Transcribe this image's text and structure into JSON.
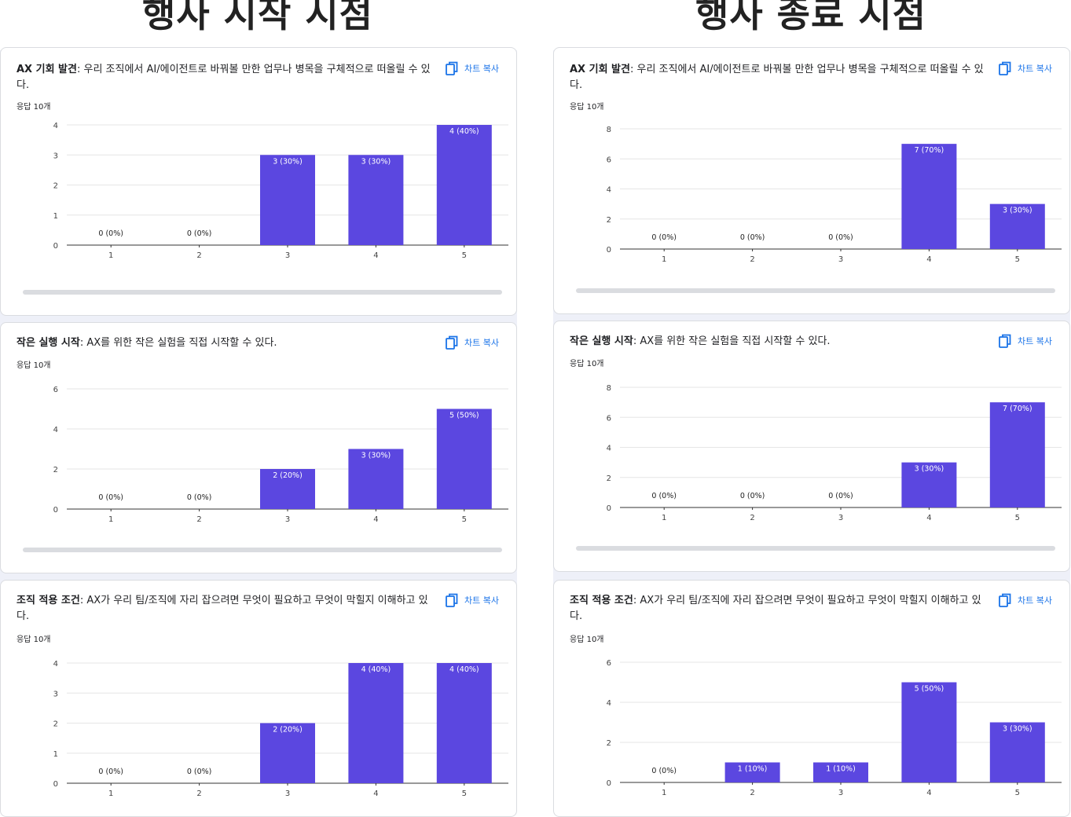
{
  "columns": [
    {
      "title": "행사 시작 시점"
    },
    {
      "title": "행사 종료 시점"
    }
  ],
  "copy_label": "차트 복사",
  "icons": {
    "copy": "copy-icon"
  },
  "colors": {
    "bar": "#5b47e0",
    "accent": "#1a73e8"
  },
  "cards": [
    {
      "strong": "AX 기회 발견",
      "text": ": 우리 조직에서 AI/에이전트로 바꿔볼 만한 업무나 병목을 구체적으로 떠올릴 수 있다.",
      "count": "응답 10개"
    },
    {
      "strong": "작은 실행 시작",
      "text": ": AX를 위한 작은 실험을 직접 시작할 수 있다.",
      "count": "응답 10개"
    },
    {
      "strong": "조직 적용 조건",
      "text": ": AX가 우리 팀/조직에 자리 잡으려면 무엇이 필요하고 무엇이 막힐지 이해하고 있다.",
      "count": "응답 10개"
    },
    {
      "strong": "AX 기회 발견",
      "text": ": 우리 조직에서 AI/에이전트로 바꿔볼 만한 업무나 병목을 구체적으로 떠올릴 수 있다.",
      "count": "응답 10개"
    },
    {
      "strong": "작은 실행 시작",
      "text": ": AX를 위한 작은 실험을 직접 시작할 수 있다.",
      "count": "응답 10개"
    },
    {
      "strong": "조직 적용 조건",
      "text": ": AX가 우리 팀/조직에 자리 잡으려면 무엇이 필요하고 무엇이 막힐지 이해하고 있다.",
      "count": "응답 10개"
    }
  ],
  "chart_data": [
    {
      "type": "bar",
      "categories": [
        "1",
        "2",
        "3",
        "4",
        "5"
      ],
      "values": [
        0,
        0,
        3,
        3,
        4
      ],
      "labels": [
        "0 (0%)",
        "0 (0%)",
        "3 (30%)",
        "3 (30%)",
        "4 (40%)"
      ],
      "ylim": [
        0,
        4
      ],
      "yticks": [
        0,
        1,
        2,
        3,
        4
      ]
    },
    {
      "type": "bar",
      "categories": [
        "1",
        "2",
        "3",
        "4",
        "5"
      ],
      "values": [
        0,
        0,
        2,
        3,
        5
      ],
      "labels": [
        "0 (0%)",
        "0 (0%)",
        "2 (20%)",
        "3 (30%)",
        "5 (50%)"
      ],
      "ylim": [
        0,
        6
      ],
      "yticks": [
        0,
        2,
        4,
        6
      ]
    },
    {
      "type": "bar",
      "categories": [
        "1",
        "2",
        "3",
        "4",
        "5"
      ],
      "values": [
        0,
        0,
        2,
        4,
        4
      ],
      "labels": [
        "0 (0%)",
        "0 (0%)",
        "2 (20%)",
        "4 (40%)",
        "4 (40%)"
      ],
      "ylim": [
        0,
        4
      ],
      "yticks": [
        0,
        1,
        2,
        3,
        4
      ]
    },
    {
      "type": "bar",
      "categories": [
        "1",
        "2",
        "3",
        "4",
        "5"
      ],
      "values": [
        0,
        0,
        0,
        7,
        3
      ],
      "labels": [
        "0 (0%)",
        "0 (0%)",
        "0 (0%)",
        "7 (70%)",
        "3 (30%)"
      ],
      "ylim": [
        0,
        8
      ],
      "yticks": [
        0,
        2,
        4,
        6,
        8
      ]
    },
    {
      "type": "bar",
      "categories": [
        "1",
        "2",
        "3",
        "4",
        "5"
      ],
      "values": [
        0,
        0,
        0,
        3,
        7
      ],
      "labels": [
        "0 (0%)",
        "0 (0%)",
        "0 (0%)",
        "3 (30%)",
        "7 (70%)"
      ],
      "ylim": [
        0,
        8
      ],
      "yticks": [
        0,
        2,
        4,
        6,
        8
      ]
    },
    {
      "type": "bar",
      "categories": [
        "1",
        "2",
        "3",
        "4",
        "5"
      ],
      "values": [
        0,
        1,
        1,
        5,
        3
      ],
      "labels": [
        "0 (0%)",
        "1 (10%)",
        "1 (10%)",
        "5 (50%)",
        "3 (30%)"
      ],
      "ylim": [
        0,
        6
      ],
      "yticks": [
        0,
        2,
        4,
        6
      ]
    }
  ]
}
